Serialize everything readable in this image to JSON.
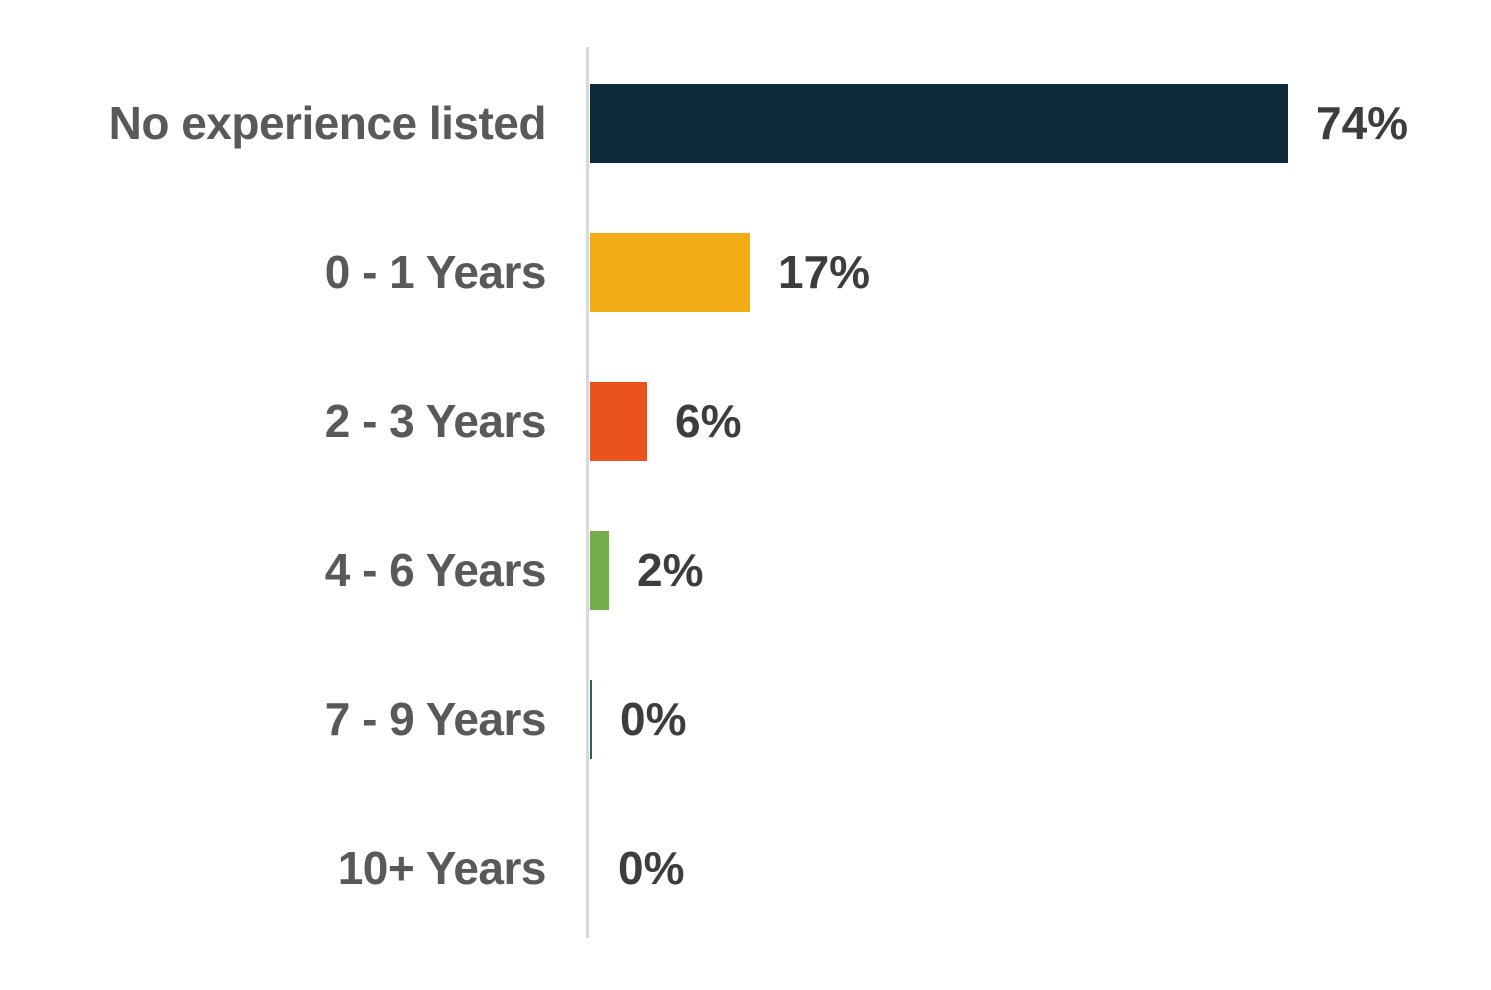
{
  "chart_data": {
    "type": "bar",
    "orientation": "horizontal",
    "title": "",
    "xlabel": "",
    "ylabel": "",
    "categories": [
      "No experience listed",
      "0 - 1 Years",
      "2 - 3 Years",
      "4 - 6 Years",
      "7 - 9 Years",
      "10+ Years"
    ],
    "values": [
      74,
      17,
      6,
      2,
      0,
      0
    ],
    "values_precise": [
      74,
      17,
      6,
      2,
      0.2,
      0
    ],
    "value_labels": [
      "74%",
      "17%",
      "6%",
      "2%",
      "0%",
      "0%"
    ],
    "bar_colors": [
      "#0A2B37",
      "#F2AC15",
      "#EA541C",
      "#73AE4B",
      "#2E5F63",
      "#2E5F63"
    ],
    "xlim": [
      0,
      80
    ],
    "grid": false,
    "legend": false,
    "data_labels": true,
    "axis_line_color": "#D9D9D9",
    "category_label_color": "#595959",
    "value_label_color": "#3D3D3D",
    "background_color": "#FFFFFF"
  }
}
